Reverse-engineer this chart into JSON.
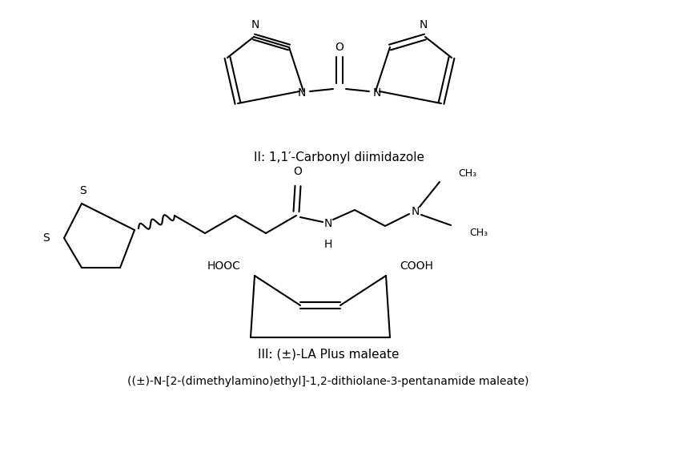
{
  "bg_color": "#ffffff",
  "line_color": "#000000",
  "line_width": 1.5,
  "font_size_label": 11,
  "font_size_small": 9,
  "label_II": "II: 1,1′-Carbonyl diimidazole",
  "label_III": "III: (±)-LA Plus maleate",
  "label_III_sub": "((±)-N-[2-(dimethylamino)ethyl]-1,2-dithiolane-3-pentanamide maleate)"
}
